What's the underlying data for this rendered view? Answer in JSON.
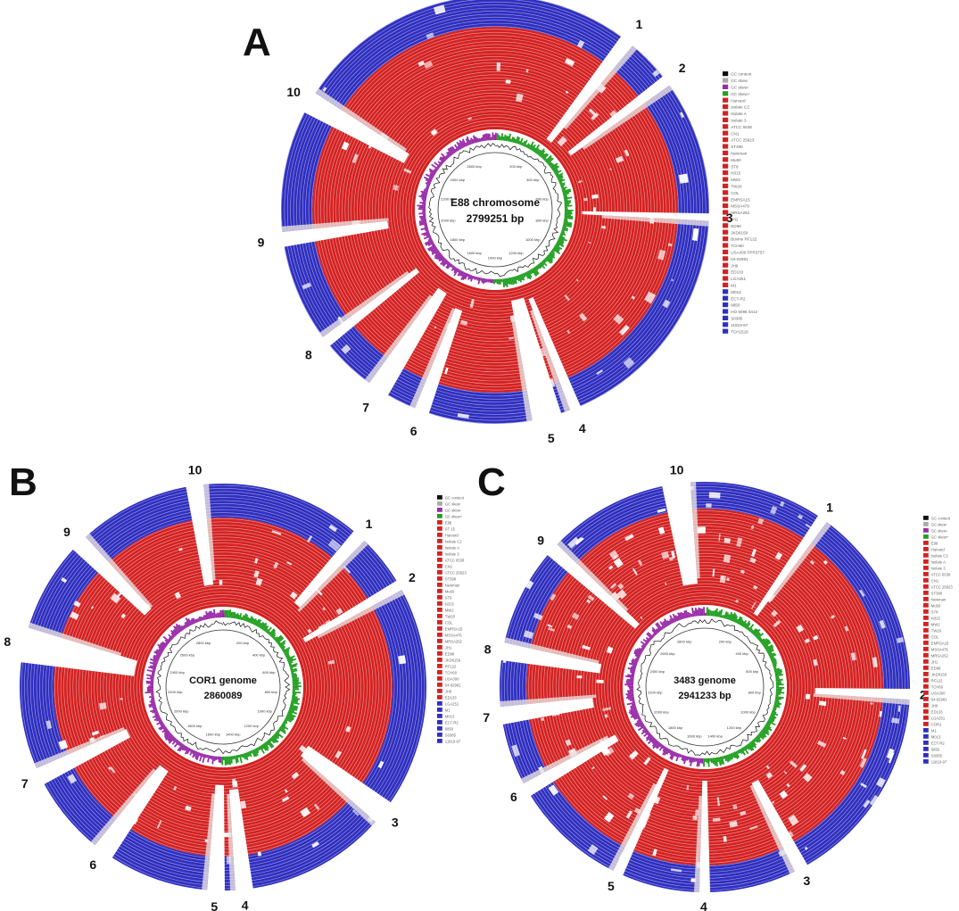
{
  "colors": {
    "ring_red": "#d42222",
    "ring_blue": "#2f2fc0",
    "gap_white": "#ffffff",
    "gc_skew_plus": "#22a022",
    "gc_skew_minus": "#9a2ca8",
    "gc_content": "#111111"
  },
  "panels": [
    {
      "letter": "A",
      "title_line1": "E88 chromosome",
      "title_line2": "2799251 bp",
      "ticks": [
        "200 kbp",
        "400 kbp",
        "600 kbp",
        "800 kbp",
        "1000 kbp",
        "1200 kbp",
        "1400 kbp",
        "1600 kbp",
        "1800 kbp",
        "2000 kbp",
        "2200 kbp",
        "2400 kbp",
        "2600 kbp"
      ],
      "regions": [
        "1",
        "2",
        "3",
        "4",
        "5",
        "6",
        "7",
        "8",
        "9",
        "10"
      ],
      "legend": [
        "GC content",
        "GC skew",
        "GC skew-",
        "GC skew+",
        "Harvard",
        "Isolate C2",
        "Isolate A",
        "Isolate 3",
        "ATCC 6538",
        "CN1",
        "ATCC 25923",
        "ST398",
        "Newman",
        "Mu50",
        "ST8",
        "N315",
        "MW2",
        "TW20",
        "COL",
        "EMRSA15",
        "MSSA476",
        "MRSA252",
        "JH1",
        "ED98",
        "JKD6159",
        "Bovine RF122",
        "TCH60",
        "USA300 FPR3757",
        "04-02981",
        "JH9",
        "ED133",
        "LGA251",
        "M1",
        "M013",
        "ECT-R2",
        "6850",
        "HO 5096 0412",
        "S0385",
        "11819-97",
        "TCH1516"
      ],
      "legend_colors": [
        "#111111",
        "#aaaaaa",
        "#9a2ca8",
        "#22a022",
        "#d42222",
        "#d42222",
        "#d42222",
        "#d42222",
        "#d42222",
        "#d42222",
        "#d42222",
        "#d42222",
        "#d42222",
        "#d42222",
        "#d42222",
        "#d42222",
        "#d42222",
        "#d42222",
        "#d42222",
        "#d42222",
        "#d42222",
        "#d42222",
        "#d42222",
        "#d42222",
        "#d42222",
        "#d42222",
        "#d42222",
        "#d42222",
        "#d42222",
        "#d42222",
        "#d42222",
        "#d42222",
        "#d42222",
        "#2f2fc0",
        "#2f2fc0",
        "#2f2fc0",
        "#2f2fc0",
        "#2f2fc0",
        "#2f2fc0",
        "#2f2fc0"
      ]
    },
    {
      "letter": "B",
      "title_line1": "COR1 genome",
      "title_line2": "2860089",
      "ticks": [
        "200 kbp",
        "400 kbp",
        "600 kbp",
        "800 kbp",
        "1000 kbp",
        "1200 kbp",
        "1400 kbp",
        "1600 kbp",
        "1800 kbp",
        "2000 kbp",
        "2200 kbp",
        "2400 kbp",
        "2600 kbp",
        "2800 kbp"
      ],
      "regions": [
        "1",
        "2",
        "3",
        "4",
        "5",
        "6",
        "7",
        "8",
        "9",
        "10"
      ],
      "legend": [
        "GC content",
        "GC skew",
        "GC skew-",
        "GC skew+",
        "E88",
        "ST 15",
        "Harvard",
        "Isolate C2",
        "Isolate A",
        "Isolate 3",
        "ATCC 6538",
        "CN1",
        "ATCC 25923",
        "ST398",
        "Newman",
        "Mu50",
        "ST8",
        "N315",
        "MW2",
        "TW20",
        "COL",
        "EMRSA15",
        "MSSA476",
        "MRSA252",
        "JH1",
        "ED98",
        "JKD6159",
        "RF122",
        "TCH60",
        "USA300",
        "04-02981",
        "JH9",
        "ED133",
        "LGA251",
        "M1",
        "M013",
        "ECT-R2",
        "6850",
        "S0385",
        "11819-97"
      ],
      "legend_colors": [
        "#111111",
        "#aaaaaa",
        "#9a2ca8",
        "#22a022",
        "#d42222",
        "#d42222",
        "#d42222",
        "#d42222",
        "#d42222",
        "#d42222",
        "#d42222",
        "#d42222",
        "#d42222",
        "#d42222",
        "#d42222",
        "#d42222",
        "#d42222",
        "#d42222",
        "#d42222",
        "#d42222",
        "#d42222",
        "#d42222",
        "#d42222",
        "#d42222",
        "#d42222",
        "#d42222",
        "#d42222",
        "#d42222",
        "#d42222",
        "#d42222",
        "#d42222",
        "#d42222",
        "#d42222",
        "#2f2fc0",
        "#2f2fc0",
        "#2f2fc0",
        "#2f2fc0",
        "#2f2fc0",
        "#2f2fc0",
        "#2f2fc0"
      ]
    },
    {
      "letter": "C",
      "title_line1": "3483 genome",
      "title_line2": "2941233 bp",
      "ticks": [
        "200 kbp",
        "400 kbp",
        "600 kbp",
        "800 kbp",
        "1000 kbp",
        "1200 kbp",
        "1400 kbp",
        "1600 kbp",
        "1800 kbp",
        "2000 kbp",
        "2200 kbp",
        "2400 kbp",
        "2600 kbp",
        "2800 kbp"
      ],
      "regions": [
        "1",
        "2",
        "3",
        "4",
        "5",
        "6",
        "7",
        "8",
        "9",
        "10"
      ],
      "legend": [
        "GC content",
        "GC skew",
        "GC skew-",
        "GC skew+",
        "E88",
        "Harvard",
        "Isolate C2",
        "Isolate A",
        "Isolate 3",
        "ATCC 6538",
        "CN1",
        "ATCC 25923",
        "ST398",
        "Newman",
        "Mu50",
        "ST8",
        "N315",
        "MW2",
        "TW20",
        "COL",
        "EMRSA15",
        "MSSA476",
        "MRSA252",
        "JH1",
        "ED98",
        "JKD6159",
        "RF122",
        "TCH60",
        "USA300",
        "04-02981",
        "JH9",
        "ED133",
        "LGA251",
        "COR1",
        "M1",
        "M013",
        "ECT-R2",
        "6850",
        "S0385",
        "11819-97"
      ],
      "legend_colors": [
        "#111111",
        "#aaaaaa",
        "#9a2ca8",
        "#22a022",
        "#d42222",
        "#d42222",
        "#d42222",
        "#d42222",
        "#d42222",
        "#d42222",
        "#d42222",
        "#d42222",
        "#d42222",
        "#d42222",
        "#d42222",
        "#d42222",
        "#d42222",
        "#d42222",
        "#d42222",
        "#d42222",
        "#d42222",
        "#d42222",
        "#d42222",
        "#d42222",
        "#d42222",
        "#d42222",
        "#d42222",
        "#d42222",
        "#d42222",
        "#d42222",
        "#d42222",
        "#d42222",
        "#d42222",
        "#d42222",
        "#2f2fc0",
        "#2f2fc0",
        "#2f2fc0",
        "#2f2fc0",
        "#2f2fc0",
        "#2f2fc0"
      ]
    }
  ]
}
